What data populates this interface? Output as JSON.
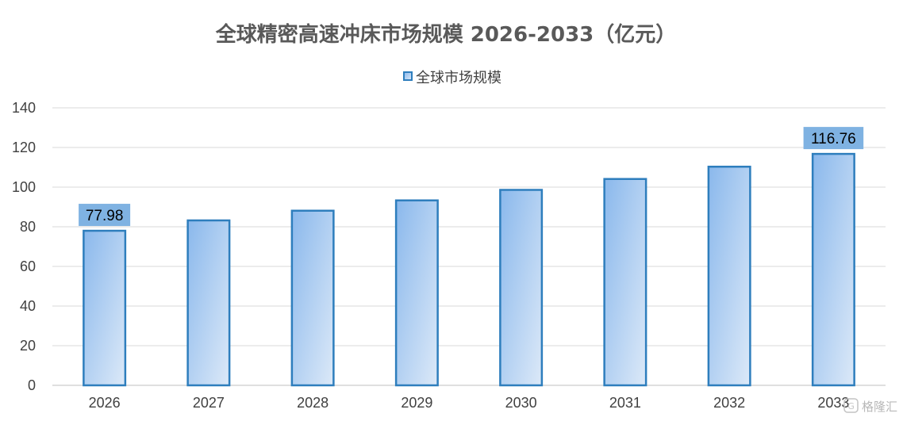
{
  "colors": {
    "bar_fill_top": "#8ab8ec",
    "bar_fill_bottom": "#dce9f8",
    "bar_stroke": "#2e7ebd",
    "label_bg": "#7fb2e2",
    "grid": "#d9d9d9",
    "title": "#595959"
  },
  "watermark": {
    "text": "格隆汇",
    "icon": "gelonghui-logo-icon"
  },
  "chart_data": {
    "type": "bar",
    "title": "全球精密高速冲床市场规模 2026-2033（亿元）",
    "legend": {
      "position": "top",
      "entries": [
        "全球市场规模"
      ]
    },
    "categories": [
      "2026",
      "2027",
      "2028",
      "2029",
      "2030",
      "2031",
      "2032",
      "2033"
    ],
    "series": [
      {
        "name": "全球市场规模",
        "values": [
          77.98,
          83.2,
          88.1,
          93.3,
          98.6,
          104.1,
          110.3,
          116.76
        ]
      }
    ],
    "data_labels": [
      {
        "index": 0,
        "text": "77.98"
      },
      {
        "index": 7,
        "text": "116.76"
      }
    ],
    "ylim": [
      0,
      140
    ],
    "yticks": [
      0,
      20,
      40,
      60,
      80,
      100,
      120,
      140
    ],
    "grid": true,
    "xlabel": "",
    "ylabel": ""
  }
}
